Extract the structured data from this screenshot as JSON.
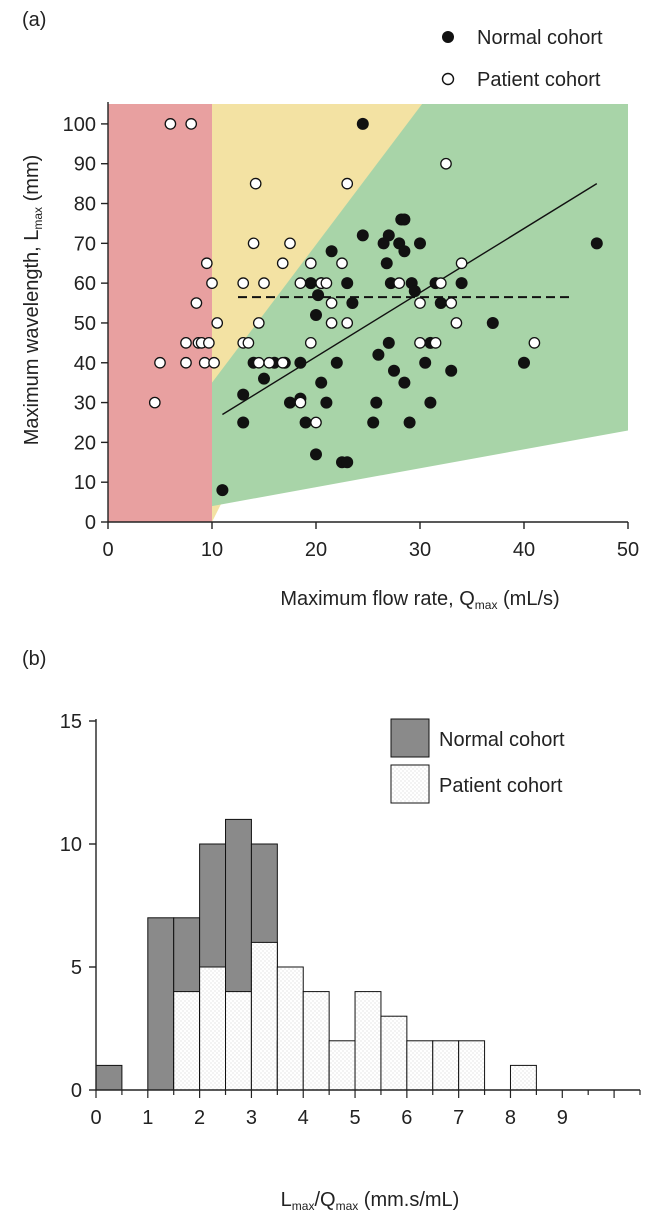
{
  "chart_data": [
    {
      "type": "scatter",
      "panel_label": "(a)",
      "xlabel_main": "Maximum flow rate, Q",
      "xlabel_sub": "max",
      "xlabel_unit": " (mL/s)",
      "ylabel_main": "Maximum wavelength, L",
      "ylabel_sub": "max",
      "ylabel_unit": " (mm)",
      "xlim": [
        0,
        50
      ],
      "ylim": [
        0,
        105
      ],
      "x_ticks": [
        0,
        10,
        20,
        30,
        40,
        50
      ],
      "y_ticks": [
        0,
        10,
        20,
        30,
        40,
        50,
        60,
        70,
        80,
        90,
        100
      ],
      "legend_position": "top-right",
      "regions": [
        {
          "name": "red",
          "color": "#e8a0a0",
          "polygon": [
            [
              0,
              0
            ],
            [
              10,
              0
            ],
            [
              10,
              105
            ],
            [
              0,
              105
            ]
          ]
        },
        {
          "name": "yellow",
          "color": "#f3e2a3",
          "polygon": [
            [
              10,
              0
            ],
            [
              10,
              105
            ],
            [
              30.2,
              105
            ]
          ]
        },
        {
          "name": "green",
          "color": "#a8d4a8",
          "polygon": [
            [
              10,
              4
            ],
            [
              10,
              35
            ],
            [
              30.2,
              105
            ],
            [
              50,
              105
            ],
            [
              50,
              23
            ]
          ]
        }
      ],
      "dashed_line": {
        "x": [
          12.5,
          44.5
        ],
        "y": [
          56.5,
          56.5
        ],
        "color": "#111111"
      },
      "fit_line": {
        "x": [
          11,
          47
        ],
        "y": [
          27,
          85
        ],
        "color": "#111111"
      },
      "series": [
        {
          "name": "Normal cohort",
          "marker": "filled",
          "color": "#111111",
          "points": [
            [
              11,
              8
            ],
            [
              13,
              25
            ],
            [
              13,
              32
            ],
            [
              14,
              40
            ],
            [
              15,
              36
            ],
            [
              16,
              40
            ],
            [
              17,
              40
            ],
            [
              17.5,
              30
            ],
            [
              18.5,
              31
            ],
            [
              18.5,
              40
            ],
            [
              19,
              25
            ],
            [
              19.5,
              60
            ],
            [
              20,
              17
            ],
            [
              20,
              52
            ],
            [
              20.2,
              57
            ],
            [
              20.5,
              35
            ],
            [
              20.5,
              60
            ],
            [
              21,
              30
            ],
            [
              21.5,
              68
            ],
            [
              22,
              40
            ],
            [
              22.5,
              15
            ],
            [
              23,
              15
            ],
            [
              23,
              60
            ],
            [
              23.5,
              55
            ],
            [
              24.5,
              100
            ],
            [
              24.5,
              72
            ],
            [
              25.5,
              25
            ],
            [
              25.8,
              30
            ],
            [
              26,
              42
            ],
            [
              26.5,
              70
            ],
            [
              26.8,
              65
            ],
            [
              27,
              45
            ],
            [
              27,
              72
            ],
            [
              27.2,
              60
            ],
            [
              27.5,
              38
            ],
            [
              28,
              70
            ],
            [
              28.2,
              76
            ],
            [
              28.5,
              76
            ],
            [
              28.5,
              68
            ],
            [
              28.5,
              35
            ],
            [
              29,
              25
            ],
            [
              29.2,
              60
            ],
            [
              29.5,
              58
            ],
            [
              30,
              70
            ],
            [
              30.5,
              40
            ],
            [
              31,
              30
            ],
            [
              31,
              45
            ],
            [
              31.5,
              60
            ],
            [
              32,
              55
            ],
            [
              33,
              38
            ],
            [
              34,
              60
            ],
            [
              37,
              50
            ],
            [
              40,
              40
            ],
            [
              47,
              70
            ]
          ]
        },
        {
          "name": "Patient cohort",
          "marker": "open",
          "color": "#111111",
          "points": [
            [
              4.5,
              30
            ],
            [
              5,
              40
            ],
            [
              6,
              100
            ],
            [
              8,
              100
            ],
            [
              7.5,
              40
            ],
            [
              7.5,
              45
            ],
            [
              8.5,
              55
            ],
            [
              8.7,
              45
            ],
            [
              9,
              45
            ],
            [
              9.3,
              40
            ],
            [
              9.5,
              65
            ],
            [
              9.7,
              45
            ],
            [
              10,
              60
            ],
            [
              10.2,
              40
            ],
            [
              10.5,
              50
            ],
            [
              13,
              45
            ],
            [
              13,
              60
            ],
            [
              13.5,
              45
            ],
            [
              14,
              70
            ],
            [
              14.2,
              85
            ],
            [
              14.5,
              50
            ],
            [
              14.5,
              40
            ],
            [
              15,
              60
            ],
            [
              15.5,
              40
            ],
            [
              16.8,
              65
            ],
            [
              16.8,
              40
            ],
            [
              17.5,
              70
            ],
            [
              18.5,
              30
            ],
            [
              18.5,
              60
            ],
            [
              19.5,
              65
            ],
            [
              19.5,
              45
            ],
            [
              20,
              25
            ],
            [
              20.5,
              60
            ],
            [
              21,
              60
            ],
            [
              21.5,
              50
            ],
            [
              21.5,
              55
            ],
            [
              22.5,
              65
            ],
            [
              23,
              85
            ],
            [
              23,
              50
            ],
            [
              28,
              60
            ],
            [
              30,
              55
            ],
            [
              30,
              45
            ],
            [
              31.5,
              45
            ],
            [
              32,
              60
            ],
            [
              32.5,
              90
            ],
            [
              33,
              55
            ],
            [
              33.5,
              50
            ],
            [
              34,
              65
            ],
            [
              41,
              45
            ]
          ]
        }
      ]
    },
    {
      "type": "bar",
      "subtype": "overlaid-histogram",
      "panel_label": "(b)",
      "xlabel_L": "L",
      "xlabel_L_sub": "max",
      "xlabel_slash": "/Q",
      "xlabel_Q_sub": "max",
      "xlabel_unit": " (mm.s/mL)",
      "xlim": [
        0,
        10.5
      ],
      "ylim": [
        0,
        15
      ],
      "x_ticks": [
        0,
        1,
        2,
        3,
        4,
        5,
        6,
        7,
        8,
        9
      ],
      "y_ticks": [
        0,
        5,
        10,
        15
      ],
      "bin_width": 0.5,
      "bin_starts": [
        0,
        0.5,
        1,
        1.5,
        2,
        2.5,
        3,
        3.5,
        4,
        4.5,
        5,
        5.5,
        6,
        6.5,
        7,
        7.5,
        8,
        8.5,
        9,
        9.5,
        10
      ],
      "legend_position": "top-right",
      "series": [
        {
          "name": "Normal cohort",
          "color": "#8a8a8a",
          "values": [
            1,
            0,
            7,
            7,
            10,
            11,
            10,
            2,
            0,
            1,
            0,
            0,
            0,
            0,
            0,
            0,
            0,
            0,
            0,
            0,
            0
          ]
        },
        {
          "name": "Patient cohort",
          "color": "#ffffff",
          "values": [
            0,
            0,
            0,
            4,
            5,
            4,
            6,
            5,
            4,
            2,
            4,
            3,
            2,
            2,
            2,
            0,
            1,
            0,
            0,
            0,
            0
          ]
        }
      ]
    }
  ]
}
